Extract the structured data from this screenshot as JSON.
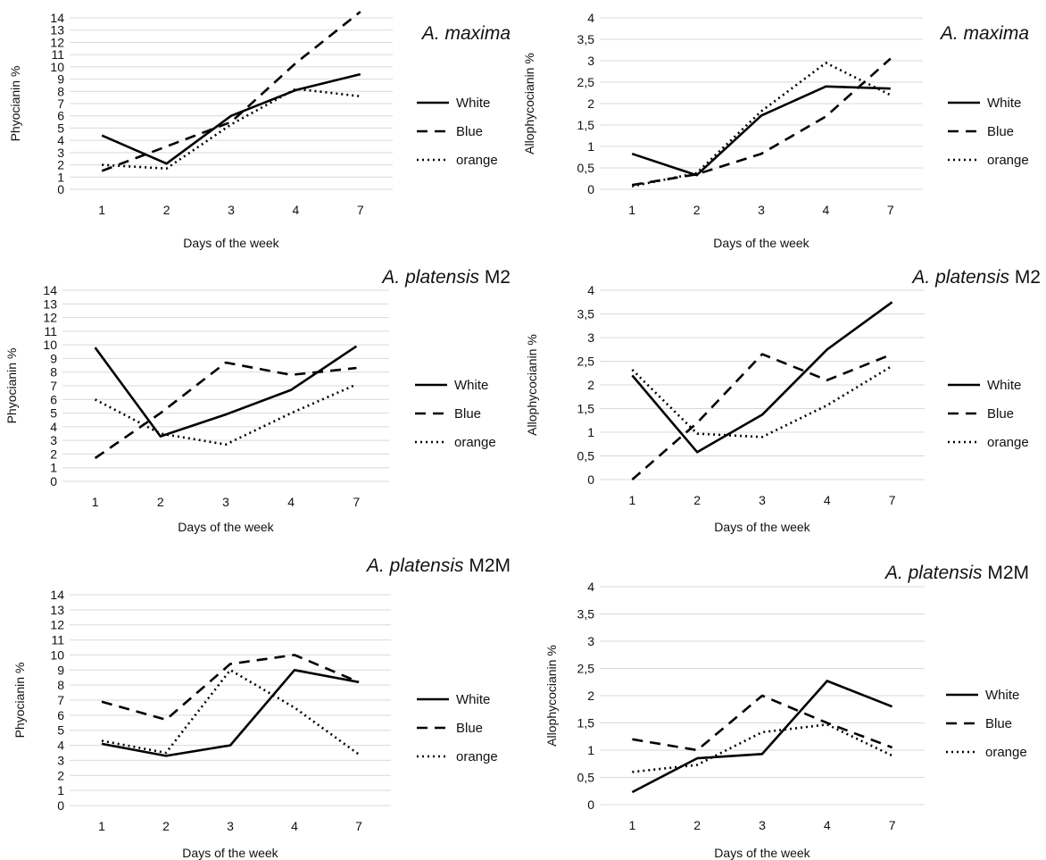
{
  "chart_data": [
    {
      "type": "line",
      "title_italic": "A. maxima",
      "title_rest": "",
      "xlabel": "Days of the week",
      "ylabel": "Phyocianin %",
      "categories": [
        "1",
        "2",
        "3",
        "4",
        "7"
      ],
      "ylim": [
        0,
        14
      ],
      "yticks": [
        "0",
        "1",
        "2",
        "3",
        "4",
        "5",
        "6",
        "7",
        "8",
        "9",
        "10",
        "11",
        "12",
        "13",
        "14"
      ],
      "grid": true,
      "legend": "right",
      "series": [
        {
          "name": "White",
          "style": "solid",
          "values": [
            4.4,
            2.1,
            6.0,
            8.1,
            9.4
          ]
        },
        {
          "name": "Blue",
          "style": "dashed",
          "values": [
            1.5,
            3.5,
            5.5,
            10.3,
            14.5
          ]
        },
        {
          "name": "orange",
          "style": "dotted",
          "values": [
            2.0,
            1.7,
            5.3,
            8.2,
            7.6
          ]
        }
      ]
    },
    {
      "type": "line",
      "title_italic": "A. maxima",
      "title_rest": "",
      "xlabel": "Days of the week",
      "ylabel": "Allophycocianin %",
      "categories": [
        "1",
        "2",
        "3",
        "4",
        "7"
      ],
      "ylim": [
        0,
        4
      ],
      "yticks": [
        "0",
        "0,5",
        "1",
        "1,5",
        "2",
        "2,5",
        "3",
        "3,5",
        "4"
      ],
      "grid": true,
      "legend": "right",
      "series": [
        {
          "name": "White",
          "style": "solid",
          "values": [
            0.83,
            0.33,
            1.72,
            2.4,
            2.35
          ]
        },
        {
          "name": "Blue",
          "style": "dashed",
          "values": [
            0.1,
            0.35,
            0.83,
            1.7,
            3.05
          ]
        },
        {
          "name": "orange",
          "style": "dotted",
          "values": [
            0.07,
            0.38,
            1.82,
            2.95,
            2.2
          ]
        }
      ]
    },
    {
      "type": "line",
      "title_italic": "A. platensis",
      "title_rest": " M2",
      "xlabel": "Days of the week",
      "ylabel": "Phyocianin %",
      "categories": [
        "1",
        "2",
        "3",
        "4",
        "7"
      ],
      "ylim": [
        0,
        14
      ],
      "yticks": [
        "0",
        "1",
        "2",
        "3",
        "4",
        "5",
        "6",
        "7",
        "8",
        "9",
        "10",
        "11",
        "12",
        "13",
        "14"
      ],
      "grid": true,
      "legend": "right",
      "series": [
        {
          "name": "White",
          "style": "solid",
          "values": [
            9.8,
            3.3,
            4.9,
            6.7,
            9.9
          ]
        },
        {
          "name": "Blue",
          "style": "dashed",
          "values": [
            1.7,
            5.0,
            8.7,
            7.8,
            8.3
          ]
        },
        {
          "name": "orange",
          "style": "dotted",
          "values": [
            6.0,
            3.5,
            2.7,
            5.0,
            7.1
          ]
        }
      ]
    },
    {
      "type": "line",
      "title_italic": "A. platensis",
      "title_rest": " M2",
      "xlabel": "Days of the week",
      "ylabel": "Allophycocianin %",
      "categories": [
        "1",
        "2",
        "3",
        "4",
        "7"
      ],
      "ylim": [
        0,
        4
      ],
      "yticks": [
        "0",
        "0,5",
        "1",
        "1,5",
        "2",
        "2,5",
        "3",
        "3,5",
        "4"
      ],
      "grid": true,
      "legend": "right",
      "series": [
        {
          "name": "White",
          "style": "solid",
          "values": [
            2.2,
            0.58,
            1.37,
            2.75,
            3.75
          ]
        },
        {
          "name": "Blue",
          "style": "dashed",
          "values": [
            0.0,
            1.2,
            2.65,
            2.1,
            2.65
          ]
        },
        {
          "name": "orange",
          "style": "dotted",
          "values": [
            2.32,
            0.97,
            0.9,
            1.57,
            2.4
          ]
        }
      ]
    },
    {
      "type": "line",
      "title_italic": "A. platensis",
      "title_rest": " M2M",
      "xlabel": "Days of the week",
      "ylabel": "Phyocianin %",
      "categories": [
        "1",
        "2",
        "3",
        "4",
        "7"
      ],
      "ylim": [
        0,
        14
      ],
      "yticks": [
        "0",
        "1",
        "2",
        "3",
        "4",
        "5",
        "6",
        "7",
        "8",
        "9",
        "10",
        "11",
        "12",
        "13",
        "14"
      ],
      "grid": true,
      "legend": "right",
      "series": [
        {
          "name": "White",
          "style": "solid",
          "values": [
            4.1,
            3.3,
            4.0,
            9.0,
            8.2
          ]
        },
        {
          "name": "Blue",
          "style": "dashed",
          "values": [
            6.9,
            5.7,
            9.4,
            10.0,
            8.2
          ]
        },
        {
          "name": "orange",
          "style": "dotted",
          "values": [
            4.3,
            3.5,
            9.0,
            6.5,
            3.4
          ]
        }
      ]
    },
    {
      "type": "line",
      "title_italic": "A. platensis",
      "title_rest": " M2M",
      "xlabel": "Days of the week",
      "ylabel": "Allophycocianin %",
      "categories": [
        "1",
        "2",
        "3",
        "4",
        "7"
      ],
      "ylim": [
        0,
        4
      ],
      "yticks": [
        "0",
        "0,5",
        "1",
        "1,5",
        "2",
        "2,5",
        "3",
        "3,5",
        "4"
      ],
      "grid": true,
      "legend": "right",
      "series": [
        {
          "name": "White",
          "style": "solid",
          "values": [
            0.23,
            0.85,
            0.93,
            2.27,
            1.8
          ]
        },
        {
          "name": "Blue",
          "style": "dashed",
          "values": [
            1.2,
            1.0,
            2.0,
            1.5,
            1.05
          ]
        },
        {
          "name": "orange",
          "style": "dotted",
          "values": [
            0.6,
            0.73,
            1.33,
            1.47,
            0.9
          ]
        }
      ]
    }
  ]
}
